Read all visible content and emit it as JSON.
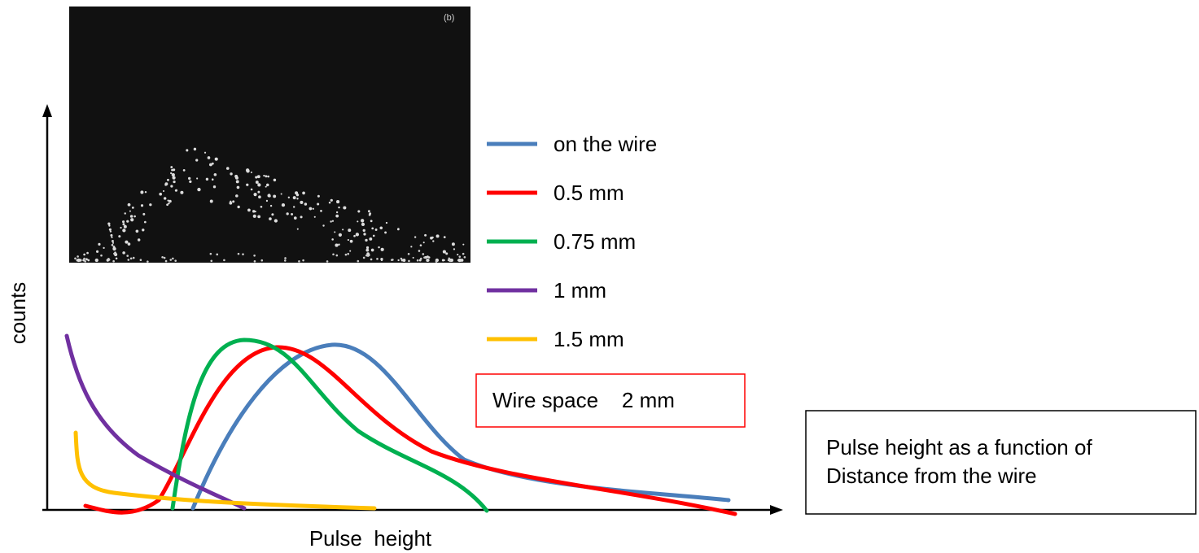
{
  "photo": {
    "label": "(b)"
  },
  "axes": {
    "y_label": "counts",
    "x_label": "Pulse  height"
  },
  "legend": [
    {
      "name": "on the wire",
      "color": "#4a7ebb"
    },
    {
      "name": "0.5 mm",
      "color": "#ff0000"
    },
    {
      "name": "0.75 mm",
      "color": "#00b050"
    },
    {
      "name": "1 mm",
      "color": "#7030a0"
    },
    {
      "name": "1.5 mm",
      "color": "#ffc000"
    }
  ],
  "note": "Wire space    2 mm",
  "caption": [
    "Pulse height as a function of",
    "Distance from the wire"
  ]
}
